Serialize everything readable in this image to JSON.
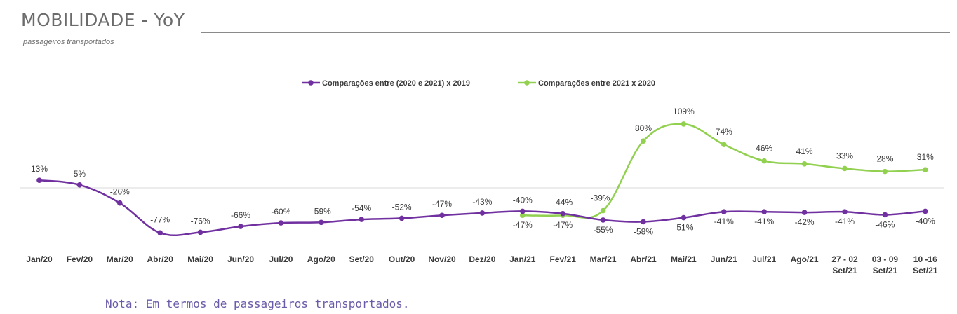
{
  "page": {
    "title": "MOBILIDADE - YoY",
    "subtitle": "passageiros transportados",
    "note": "Nota: Em termos de passageiros transportados."
  },
  "colors": {
    "series1": "#7030a0",
    "series2": "#92d050",
    "zero_line": "#d9d9d9",
    "text": "#3a3a3a",
    "note": "#6a5aa8"
  },
  "chart_data": {
    "type": "line",
    "categories": [
      [
        "Jan/20"
      ],
      [
        "Fev/20"
      ],
      [
        "Mar/20"
      ],
      [
        "Abr/20"
      ],
      [
        "Mai/20"
      ],
      [
        "Jun/20"
      ],
      [
        "Jul/20"
      ],
      [
        "Ago/20"
      ],
      [
        "Set/20"
      ],
      [
        "Out/20"
      ],
      [
        "Nov/20"
      ],
      [
        "Dez/20"
      ],
      [
        "Jan/21"
      ],
      [
        "Fev/21"
      ],
      [
        "Mar/21"
      ],
      [
        "Abr/21"
      ],
      [
        "Mai/21"
      ],
      [
        "Jun/21"
      ],
      [
        "Jul/21"
      ],
      [
        "Ago/21"
      ],
      [
        "27 - 02",
        "Set/21"
      ],
      [
        "03 - 09",
        "Set/21"
      ],
      [
        "10 -16",
        "Set/21"
      ]
    ],
    "legend_position": "top",
    "grid": false,
    "series": [
      {
        "name": "Comparações entre (2020 e 2021) x 2019",
        "values": [
          13,
          5,
          -26,
          -77,
          -76,
          -66,
          -60,
          -59,
          -54,
          -52,
          -47,
          -43,
          -40,
          -44,
          -55,
          -58,
          -51,
          -41,
          -41,
          -42,
          -41,
          -46,
          -40
        ]
      },
      {
        "name": "Comparações entre 2021 x 2020",
        "values": [
          null,
          null,
          null,
          null,
          null,
          null,
          null,
          null,
          null,
          null,
          null,
          null,
          -47,
          -47,
          -39,
          80,
          109,
          74,
          46,
          41,
          33,
          28,
          31
        ]
      }
    ],
    "labels": {
      "series1": [
        "13%",
        "5%",
        "-26%",
        "-77%",
        "-76%",
        "-66%",
        "-60%",
        "-59%",
        "-54%",
        "-52%",
        "-47%",
        "-43%",
        "-40%",
        "-44%",
        "-55%",
        "-58%",
        "-51%",
        "-41%",
        "-41%",
        "-42%",
        "-41%",
        "-46%",
        "-40%"
      ],
      "series2": [
        null,
        null,
        null,
        null,
        null,
        null,
        null,
        null,
        null,
        null,
        null,
        null,
        "-47%",
        "-47%",
        "-39%",
        "80%",
        "109%",
        "74%",
        "46%",
        "41%",
        "33%",
        "28%",
        "31%"
      ]
    }
  }
}
